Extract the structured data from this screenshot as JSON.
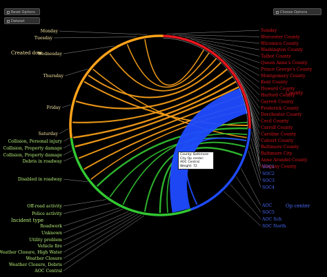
{
  "controls": {
    "top_left_1": "Reset Options",
    "top_left_2": "Dataset",
    "top_right": "Choose Options"
  },
  "colors": {
    "day": "#ffa31a",
    "county": "#e8161e",
    "incident": "#32c832",
    "direction": "#1e4bff",
    "label_day": "#f5e6a3",
    "label_county": "#e8161e",
    "label_incident": "#b8f07a",
    "label_direction": "#4a6cff",
    "lines": "#9a9a9a"
  },
  "groups": {
    "created_dow": "Created dow",
    "county": "County",
    "incident_type": "Incident type",
    "direction": "Op center"
  },
  "days": [
    "Monday",
    "Tuesday",
    "Wednesday",
    "Thursday",
    "Friday",
    "Saturday",
    "Sunday"
  ],
  "incidents": [
    "Collision, Personal injury",
    "Collision, Property damage",
    "Collision, Property damage",
    "Debris in roadway",
    "Disabled in roadway",
    "Off-road activity",
    "Police activity",
    "Roadwork",
    "Unknown",
    "Utility problem",
    "Vehicle fire",
    "Weather Closure, High Water",
    "Weather Closure",
    "Weather Closure, Debris",
    "AOC Central"
  ],
  "counties": [
    "Sunday",
    "Worcester County",
    "Wicomico County",
    "Washington County",
    "Talbot County",
    "Queen Anne's County",
    "Prince George's County",
    "Montgomery County",
    "Kent County",
    "Howard County",
    "Harford County",
    "Garrett County",
    "Frederick County",
    "Dorchester County",
    "Cecil County",
    "Carroll County",
    "Caroline County",
    "Calvert County",
    "Baltimore County",
    "Baltimore City",
    "Anne Arundel County",
    "Allegany County"
  ],
  "op_centers": [
    "SOC1",
    "SOC2",
    "SOC3",
    "SOC4",
    "AOC",
    "SOC5",
    "AOC Sch",
    "SOC North"
  ],
  "tooltip": "County: Baltimore City Op center: AOC Central Weight: 72"
}
